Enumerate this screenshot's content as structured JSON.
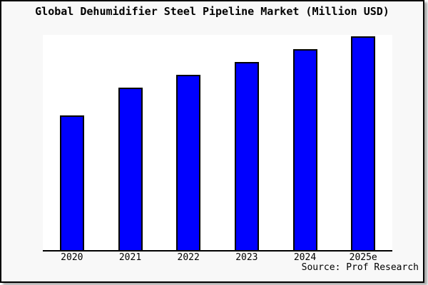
{
  "title": "Global Dehumidifier Steel Pipeline Market (Million USD)",
  "source_note": "Source: Prof Research",
  "colors": {
    "bar_fill": "#0000ff",
    "bar_border": "#000000",
    "frame_background": "#f8f8f8",
    "plot_background": "#ffffff",
    "axis_line": "#000000",
    "text": "#000000"
  },
  "chart_data": {
    "type": "bar",
    "title": "Global Dehumidifier Steel Pipeline Market (Million USD)",
    "categories": [
      "2020",
      "2021",
      "2022",
      "2023",
      "2024",
      "2025e"
    ],
    "values": [
      63,
      76,
      82,
      88,
      94,
      100
    ],
    "value_note": "no y-axis scale shown; values estimated from bar heights, normalized to 2025e = 100",
    "xlabel": "",
    "ylabel": "",
    "ylim": [
      0,
      100.5
    ],
    "grid": false,
    "legend_position": "none",
    "y_axis_visible": false,
    "source": "Source: Prof Research"
  }
}
